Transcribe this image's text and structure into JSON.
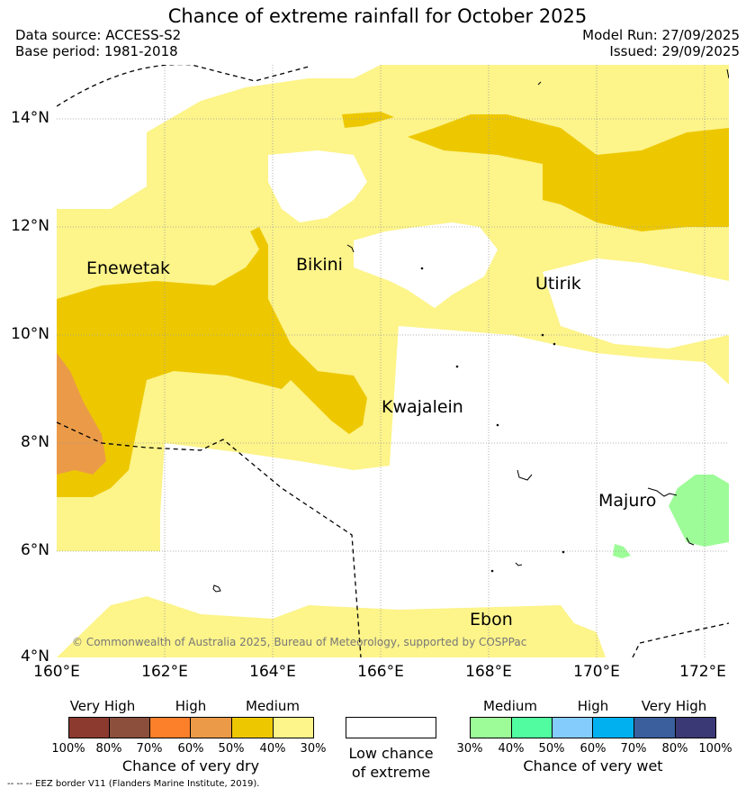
{
  "title": "Chance of extreme rainfall for October 2025",
  "header": {
    "data_source": "Data source: ACCESS-S2",
    "base_period": "Base period: 1981-2018",
    "model_run": "Model Run: 27/09/2025",
    "issued": "Issued: 29/09/2025"
  },
  "map": {
    "lat_ticks": [
      "14°N",
      "12°N",
      "10°N",
      "8°N",
      "6°N",
      "4°N"
    ],
    "lon_ticks": [
      "160°E",
      "162°E",
      "164°E",
      "166°E",
      "168°E",
      "170°E",
      "172°E"
    ],
    "places": [
      "Enewetak",
      "Bikini",
      "Utirik",
      "Kwajalein",
      "Majuro",
      "Ebon"
    ],
    "copyright": "© Commonwealth of Australia 2025, Bureau of Meteorology, supported by COSPPac",
    "colors": {
      "dry_30_40": "#fdf48a",
      "dry_40_50": "#edc800",
      "dry_50_60": "#eb9b48",
      "wet_30_40": "#9dfc98",
      "land_border": "#000000"
    }
  },
  "legend": {
    "dry": {
      "categories": [
        "Very High",
        "High",
        "Medium"
      ],
      "labels": [
        "100%",
        "80%",
        "70%",
        "60%",
        "50%",
        "40%",
        "30%"
      ],
      "colors": [
        "#8c3a2f",
        "#8b4f3c",
        "#fc7f2a",
        "#eb9b48",
        "#edc800",
        "#fdf48a"
      ],
      "title": "Chance of very dry"
    },
    "low": {
      "title_line1": "Low chance",
      "title_line2": "of extreme",
      "color": "#ffffff"
    },
    "wet": {
      "categories": [
        "Medium",
        "High",
        "Very High"
      ],
      "labels": [
        "30%",
        "40%",
        "50%",
        "60%",
        "70%",
        "80%",
        "100%"
      ],
      "colors": [
        "#9dfc98",
        "#51fca0",
        "#84ccfc",
        "#00b0ef",
        "#3a5f9c",
        "#3b3975"
      ],
      "title": "Chance of very wet"
    }
  },
  "footnote": "--  --  -- EEZ border V11 (Flanders Marine Institute, 2019)."
}
